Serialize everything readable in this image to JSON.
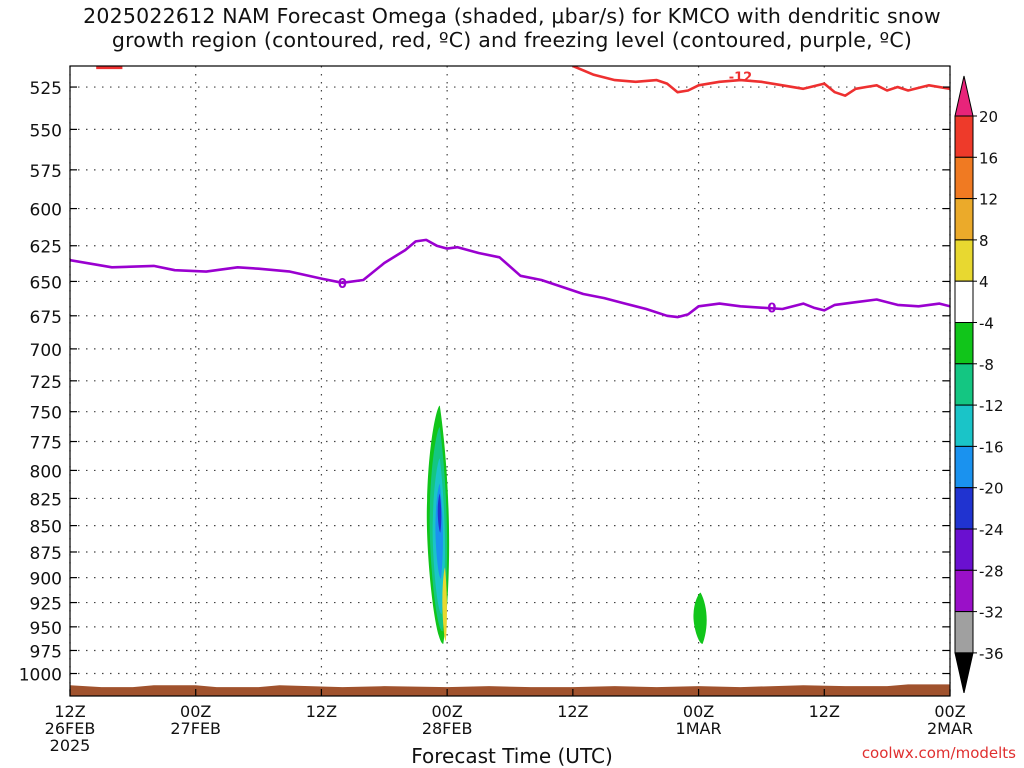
{
  "title": {
    "line1": "2025022612 NAM Forecast Omega (shaded, μbar/s) for KMCO with dendritic snow",
    "line2": "growth region (contoured, red, ºC) and freezing level (contoured, purple, ºC)"
  },
  "credit": "coolwx.com/modelts",
  "chart_data": {
    "type": "area",
    "title": "2025022612 NAM Forecast Omega (shaded, μbar/s) for KMCO with dendritic snow growth region (contoured, red, ºC) and freezing level (contoured, purple, ºC)",
    "xlabel": "Forecast Time (UTC)",
    "ylabel": "",
    "x_ticks": [
      {
        "hour": 0,
        "lines": [
          "12Z",
          "26FEB",
          "2025"
        ]
      },
      {
        "hour": 12,
        "lines": [
          "00Z",
          "27FEB"
        ]
      },
      {
        "hour": 24,
        "lines": [
          "12Z"
        ]
      },
      {
        "hour": 36,
        "lines": [
          "00Z",
          "28FEB"
        ]
      },
      {
        "hour": 48,
        "lines": [
          "12Z"
        ]
      },
      {
        "hour": 60,
        "lines": [
          "00Z",
          "1MAR"
        ]
      },
      {
        "hour": 72,
        "lines": [
          "12Z"
        ]
      },
      {
        "hour": 84,
        "lines": [
          "00Z",
          "2MAR"
        ]
      }
    ],
    "xlim_hours": [
      0,
      84
    ],
    "y_axis": {
      "scale": "log-pressure (mb), inverted",
      "ylim": [
        1025,
        513
      ],
      "ticks": [
        525,
        550,
        575,
        600,
        625,
        650,
        675,
        700,
        725,
        750,
        775,
        800,
        825,
        850,
        875,
        900,
        925,
        950,
        975,
        1000
      ]
    },
    "grid": "dotted",
    "freezing_level_0C": {
      "color": "#9a00d0",
      "label": "0",
      "points": [
        [
          0,
          635
        ],
        [
          4,
          640
        ],
        [
          8,
          639
        ],
        [
          10,
          642
        ],
        [
          13,
          643
        ],
        [
          16,
          640
        ],
        [
          18,
          641
        ],
        [
          21,
          643
        ],
        [
          24,
          648
        ],
        [
          26,
          651
        ],
        [
          28,
          649
        ],
        [
          30,
          637
        ],
        [
          32,
          628
        ],
        [
          33,
          622
        ],
        [
          34,
          621
        ],
        [
          35,
          625
        ],
        [
          36,
          627
        ],
        [
          37,
          626
        ],
        [
          39,
          630
        ],
        [
          41,
          633
        ],
        [
          43,
          646
        ],
        [
          45,
          649
        ],
        [
          47,
          654
        ],
        [
          49,
          659
        ],
        [
          51,
          662
        ],
        [
          53,
          666
        ],
        [
          55,
          670
        ],
        [
          57,
          675
        ],
        [
          58,
          676
        ],
        [
          59,
          674
        ],
        [
          60,
          668
        ],
        [
          62,
          666
        ],
        [
          64,
          668
        ],
        [
          66,
          669
        ],
        [
          68,
          670
        ],
        [
          70,
          666
        ],
        [
          71,
          669
        ],
        [
          72,
          671
        ],
        [
          73,
          667
        ],
        [
          75,
          665
        ],
        [
          77,
          663
        ],
        [
          79,
          667
        ],
        [
          81,
          668
        ],
        [
          83,
          666
        ],
        [
          84,
          668
        ]
      ],
      "label_at": [
        [
          26,
          651
        ],
        [
          67,
          669
        ]
      ]
    },
    "dgz_minus12C": {
      "color": "#ee3030",
      "label": "-12",
      "points": [
        [
          48,
          513
        ],
        [
          50,
          518
        ],
        [
          52,
          521
        ],
        [
          54,
          522
        ],
        [
          56,
          521
        ],
        [
          57,
          523
        ],
        [
          58,
          528
        ],
        [
          59,
          527
        ],
        [
          60,
          524
        ],
        [
          62,
          522
        ],
        [
          64,
          521
        ],
        [
          66,
          522
        ],
        [
          68,
          524
        ],
        [
          70,
          526
        ],
        [
          72,
          523
        ],
        [
          73,
          528
        ],
        [
          74,
          530
        ],
        [
          75,
          526
        ],
        [
          76,
          525
        ],
        [
          77,
          524
        ],
        [
          78,
          527
        ],
        [
          79,
          525
        ],
        [
          80,
          527
        ],
        [
          82,
          524
        ],
        [
          84,
          526
        ]
      ],
      "extra_points": [
        [
          2.5,
          514
        ],
        [
          5,
          514
        ]
      ],
      "label_at": [
        [
          64,
          519
        ]
      ]
    },
    "omega_features": [
      {
        "name": "upward motion max",
        "time_hours": 35.3,
        "p_top": 745,
        "p_bottom": 968,
        "min_omega": -22
      },
      {
        "name": "weak sinking",
        "time_hours": 35.8,
        "p_top": 890,
        "p_bottom": 965,
        "max_omega": 6
      },
      {
        "name": "weak upward",
        "time_hours": 60.2,
        "p_top": 915,
        "p_bottom": 968,
        "min_omega": -6
      }
    ],
    "terrain": {
      "color": "#a0522d",
      "surface_pressure_approx": 1015
    },
    "colorbar": {
      "tick_labels": [
        "20",
        "16",
        "12",
        "8",
        "4",
        "-4",
        "-8",
        "-12",
        "-16",
        "-20",
        "-24",
        "-28",
        "-32",
        "-36"
      ],
      "bins": [
        {
          "color": "#e8247a",
          "range": ">20"
        },
        {
          "color": "#ee3a2a",
          "range": "16-20"
        },
        {
          "color": "#f07a22",
          "range": "12-16"
        },
        {
          "color": "#ebaa2a",
          "range": "8-12"
        },
        {
          "color": "#e8d830",
          "range": "4-8"
        },
        {
          "color": "#ffffff",
          "range": "-4-4"
        },
        {
          "color": "#11c51a",
          "range": "-8--4"
        },
        {
          "color": "#14c682",
          "range": "-12--8"
        },
        {
          "color": "#1ac4c8",
          "range": "-16--12"
        },
        {
          "color": "#1a92ef",
          "range": "-20--16"
        },
        {
          "color": "#2033d0",
          "range": "-24--20"
        },
        {
          "color": "#6a10d0",
          "range": "-28--24"
        },
        {
          "color": "#9a10c8",
          "range": "-32--28"
        },
        {
          "color": "#a0a0a0",
          "range": "-36--32"
        },
        {
          "color": "#000000",
          "range": "<-36"
        }
      ]
    }
  }
}
